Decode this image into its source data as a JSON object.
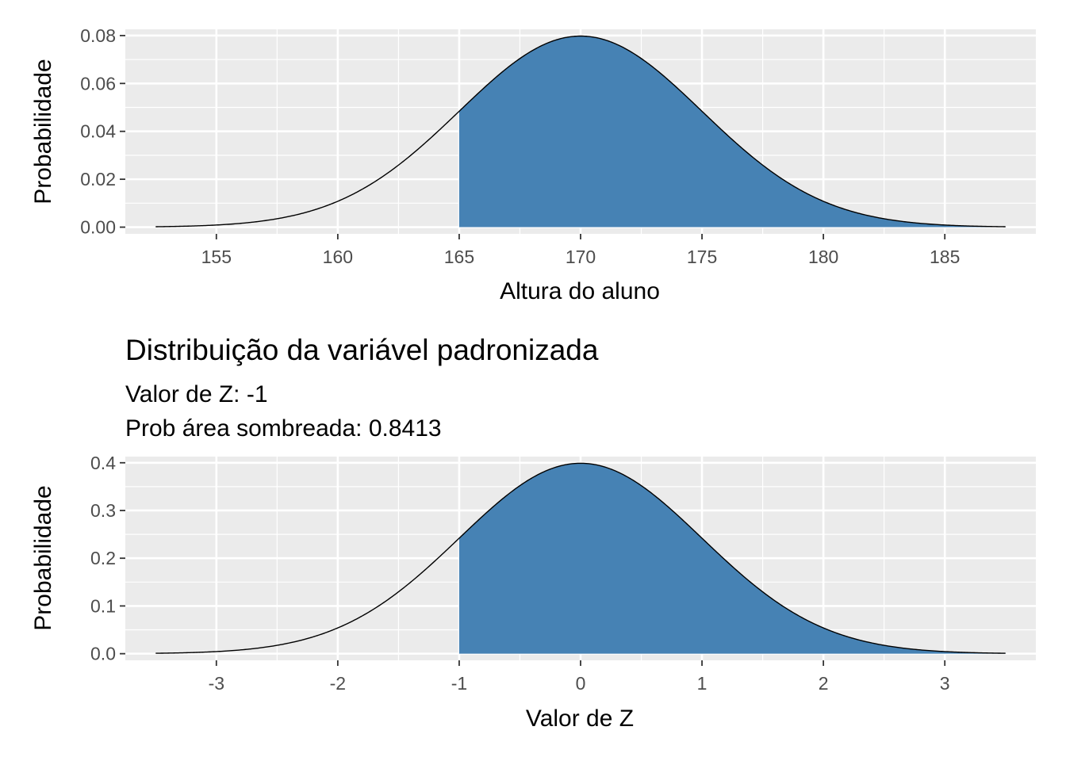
{
  "chart_data": [
    {
      "type": "area",
      "title": "",
      "subtitle_lines": [],
      "xlabel": "Altura do aluno",
      "ylabel": "Probabilidade",
      "mean": 170,
      "sd": 5,
      "shade_from": 165,
      "xlim": [
        151.25,
        188.75
      ],
      "ylim": [
        -0.0028,
        0.0826
      ],
      "x_range": [
        152.5,
        187.5
      ],
      "x_ticks": [
        155,
        160,
        165,
        170,
        175,
        180,
        185
      ],
      "x_tick_labels": [
        "155",
        "160",
        "165",
        "170",
        "175",
        "180",
        "185"
      ],
      "y_ticks": [
        0.0,
        0.02,
        0.04,
        0.06,
        0.08
      ],
      "y_tick_labels": [
        "0.00",
        "0.02",
        "0.04",
        "0.06",
        "0.08"
      ],
      "fill_color": "#4682B4",
      "panel_color": "#EBEBEB",
      "grid": true
    },
    {
      "type": "area",
      "title": "Distribuição da variável padronizada",
      "subtitle_lines": [
        "Valor de Z: -1",
        "Prob área sombreada: 0.8413"
      ],
      "xlabel": "Valor de Z",
      "ylabel": "Probabilidade",
      "mean": 0,
      "sd": 1,
      "shade_from": -1,
      "xlim": [
        -3.75,
        3.75
      ],
      "ylim": [
        -0.0139,
        0.4129
      ],
      "x_range": [
        -3.5,
        3.5
      ],
      "x_ticks": [
        -3,
        -2,
        -1,
        0,
        1,
        2,
        3
      ],
      "x_tick_labels": [
        "-3",
        "-2",
        "-1",
        "0",
        "1",
        "2",
        "3"
      ],
      "y_ticks": [
        0.0,
        0.1,
        0.2,
        0.3,
        0.4
      ],
      "y_tick_labels": [
        "0.0",
        "0.1",
        "0.2",
        "0.3",
        "0.4"
      ],
      "fill_color": "#4682B4",
      "panel_color": "#EBEBEB",
      "grid": true
    }
  ]
}
